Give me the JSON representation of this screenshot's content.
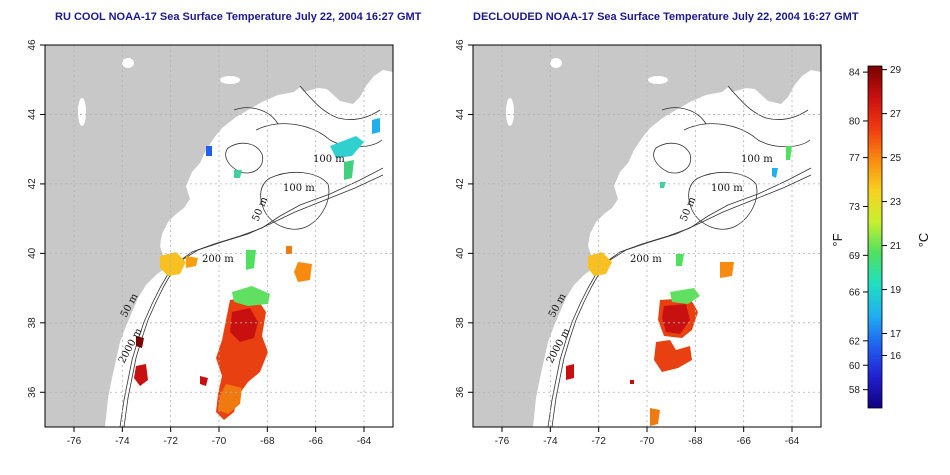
{
  "maps": [
    {
      "id": "left",
      "title": "RU COOL NOAA-17 Sea Surface Temperature July 22, 2004 16:27 GMT"
    },
    {
      "id": "right",
      "title": "DECLOUDED NOAA-17 Sea Surface Temperature July 22, 2004 16:27 GMT"
    }
  ],
  "axes": {
    "lon_range": [
      -77.2,
      -62.8
    ],
    "lat_range": [
      35,
      46
    ],
    "lon_ticks": [
      "-76",
      "-74",
      "-72",
      "-70",
      "-68",
      "-66",
      "-64"
    ],
    "lat_ticks": [
      "36",
      "38",
      "40",
      "42",
      "44",
      "46"
    ],
    "grid": "dotted"
  },
  "contour_labels": [
    "100 m",
    "100 m",
    "50 m",
    "200 m",
    "50 m",
    "2000 m"
  ],
  "colorbar": {
    "f_label": "°F",
    "c_label": "°C",
    "f_ticks": [
      "84",
      "80",
      "77",
      "73",
      "69",
      "66",
      "62",
      "60",
      "58"
    ],
    "c_ticks": [
      "29",
      "27",
      "25",
      "23",
      "21",
      "19",
      "17",
      "16"
    ],
    "colors": [
      "#7a0000",
      "#c81010",
      "#f03a10",
      "#f88a10",
      "#f8d020",
      "#c8f030",
      "#50e060",
      "#20e0c0",
      "#20b0f0",
      "#2060f0",
      "#2020d0",
      "#100080"
    ]
  },
  "colors": {
    "land": "#c8c8c8",
    "ocean": "#ffffff",
    "title": "#1a1a8c",
    "contour": "#333333"
  }
}
